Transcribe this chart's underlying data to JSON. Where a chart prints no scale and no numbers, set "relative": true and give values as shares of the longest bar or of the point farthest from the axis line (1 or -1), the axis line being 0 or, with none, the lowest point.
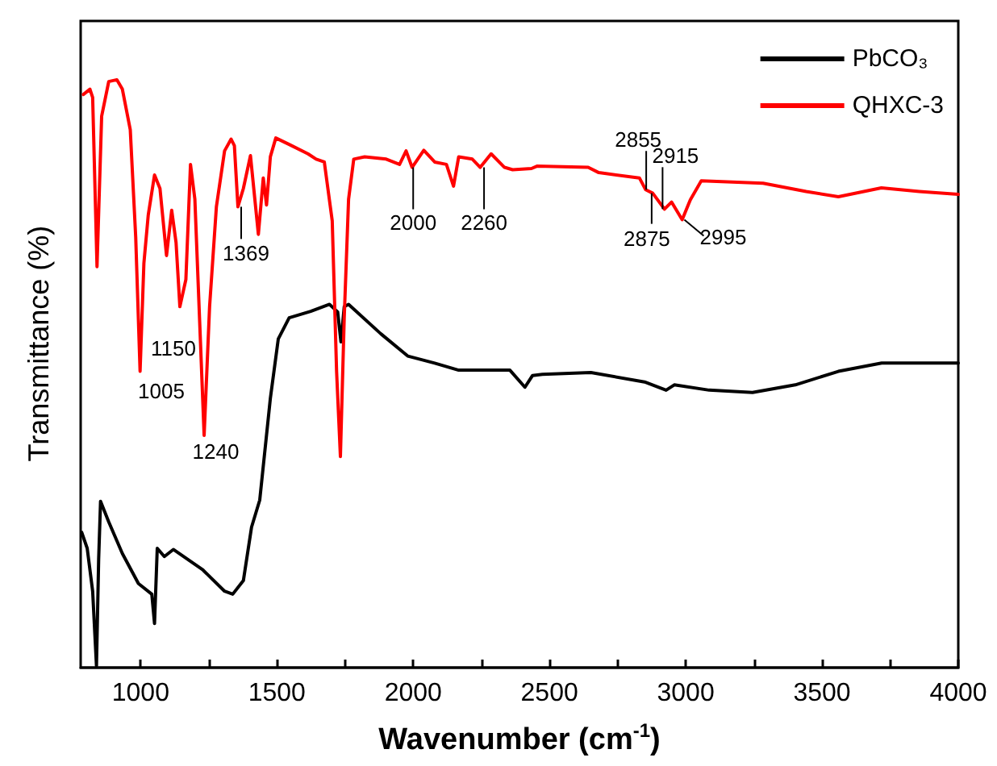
{
  "chart_data": {
    "type": "line",
    "relative": true,
    "xlabel": "Wavenumber (cm$^{-1}$)",
    "ylabel": "Transmittance (%)",
    "xlim": [
      780,
      4000
    ],
    "xticks": [
      1000,
      {
        "value": 1250,
        "label": null
      },
      1500,
      {
        "value": 1750,
        "label": null
      },
      2000,
      {
        "value": 2250,
        "label": null
      },
      2500,
      {
        "value": 2750,
        "label": null
      },
      3000,
      {
        "value": 3250,
        "label": null
      },
      3500,
      {
        "value": 3750,
        "label": null
      },
      4000
    ],
    "legend": "top right",
    "grid": false,
    "series": [
      {
        "name": "PbCO₃",
        "color": "#000000",
        "x": [
          784,
          804,
          824,
          838,
          846,
          853,
          883,
          933,
          992,
          1041,
          1051,
          1061,
          1087,
          1120,
          1229,
          1308,
          1338,
          1377,
          1407,
          1437,
          1476,
          1505,
          1545,
          1624,
          1693,
          1723,
          1735,
          1747,
          1763,
          1881,
          1980,
          2079,
          2167,
          2355,
          2410,
          2438,
          2474,
          2652,
          2849,
          2928,
          2958,
          3086,
          3245,
          3402,
          3560,
          3719,
          4000
        ],
        "values": [
          0.23,
          0.203,
          0.13,
          0.003,
          0.184,
          0.283,
          0.248,
          0.194,
          0.143,
          0.125,
          0.075,
          0.203,
          0.189,
          0.201,
          0.166,
          0.13,
          0.125,
          0.148,
          0.239,
          0.285,
          0.458,
          0.559,
          0.595,
          0.606,
          0.618,
          0.605,
          0.554,
          0.614,
          0.618,
          0.568,
          0.53,
          0.518,
          0.506,
          0.506,
          0.477,
          0.497,
          0.499,
          0.502,
          0.486,
          0.472,
          0.481,
          0.472,
          0.468,
          0.481,
          0.504,
          0.518,
          0.518
        ]
      },
      {
        "name": "QHXC-3",
        "color": "#ff0000",
        "x": [
          790,
          814,
          824,
          840,
          857,
          883,
          913,
          933,
          962,
          982,
          998,
          1012,
          1028,
          1051,
          1071,
          1095,
          1114,
          1130,
          1144,
          1166,
          1183,
          1199,
          1233,
          1253,
          1278,
          1308,
          1332,
          1344,
          1357,
          1377,
          1403,
          1432,
          1450,
          1462,
          1476,
          1496,
          1545,
          1614,
          1644,
          1674,
          1703,
          1719,
          1733,
          1747,
          1763,
          1782,
          1822,
          1901,
          1950,
          1974,
          1996,
          2039,
          2079,
          2122,
          2148,
          2167,
          2217,
          2246,
          2286,
          2335,
          2365,
          2434,
          2454,
          2642,
          2681,
          2830,
          2853,
          2879,
          2922,
          2948,
          2987,
          3017,
          3057,
          3284,
          3442,
          3560,
          3718,
          3857,
          4000
        ],
        "values": [
          0.975,
          0.984,
          0.97,
          0.682,
          0.938,
          0.997,
          1,
          0.984,
          0.915,
          0.732,
          0.504,
          0.688,
          0.77,
          0.838,
          0.815,
          0.701,
          0.778,
          0.723,
          0.614,
          0.66,
          0.856,
          0.797,
          0.395,
          0.614,
          0.784,
          0.879,
          0.899,
          0.888,
          0.784,
          0.815,
          0.871,
          0.737,
          0.833,
          0.787,
          0.869,
          0.901,
          0.89,
          0.874,
          0.865,
          0.86,
          0.76,
          0.504,
          0.359,
          0.595,
          0.797,
          0.865,
          0.869,
          0.865,
          0.856,
          0.879,
          0.851,
          0.88,
          0.86,
          0.856,
          0.819,
          0.869,
          0.865,
          0.851,
          0.874,
          0.851,
          0.847,
          0.849,
          0.853,
          0.851,
          0.842,
          0.833,
          0.813,
          0.807,
          0.78,
          0.792,
          0.762,
          0.796,
          0.828,
          0.824,
          0.81,
          0.801,
          0.816,
          0.81,
          0.805
        ]
      }
    ],
    "annotations": [
      {
        "text": "1005",
        "x": 1005,
        "y": 0.504
      },
      {
        "text": "1150",
        "x": 1150,
        "y": 0.614
      },
      {
        "text": "1240",
        "x": 1240,
        "y": 0.395
      },
      {
        "text": "1369",
        "x": 1369,
        "y": 0.784
      },
      {
        "text": "2000",
        "x": 2000,
        "y": 0.851
      },
      {
        "text": "2260",
        "x": 2260,
        "y": 0.851
      },
      {
        "text": "2855",
        "x": 2855,
        "y": 0.813
      },
      {
        "text": "2875",
        "x": 2875,
        "y": 0.807
      },
      {
        "text": "2915",
        "x": 2915,
        "y": 0.78
      },
      {
        "text": "2995",
        "x": 2995,
        "y": 0.762
      }
    ]
  }
}
